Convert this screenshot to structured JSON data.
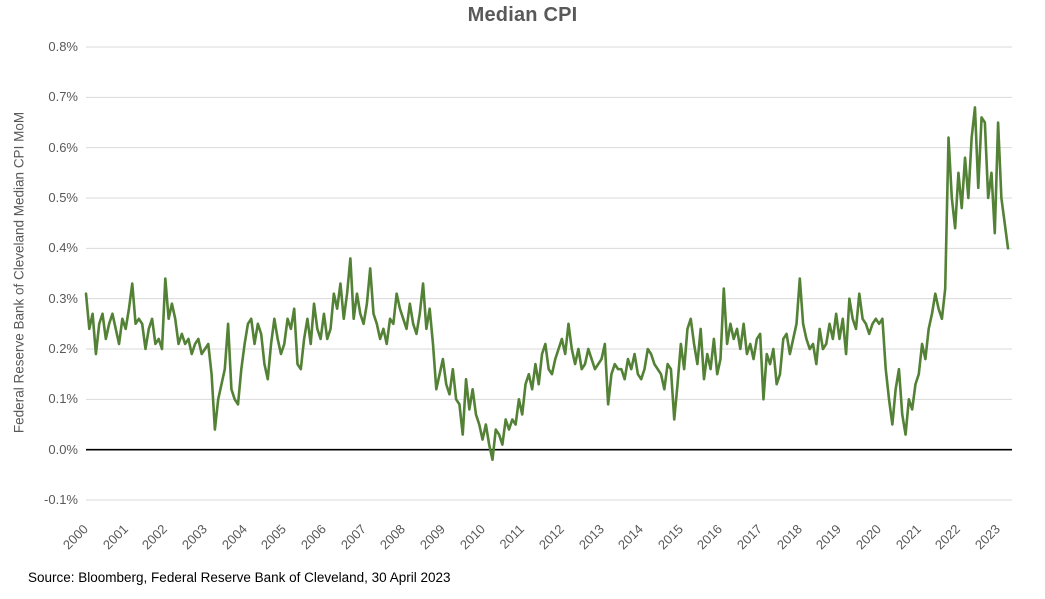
{
  "title": "Median CPI",
  "source": "Source: Bloomberg, Federal Reserve Bank of Cleveland, 30 April 2023",
  "chart_data": {
    "type": "line",
    "title": "Median CPI",
    "xlabel": "",
    "ylabel": "Federal Reserve Bank of Cleveland Median CPI MoM",
    "frequency": "monthly",
    "x_start": "2000-01",
    "x_end": "2023-04",
    "ylim": [
      -0.1,
      0.8
    ],
    "grid": "horizontal",
    "legend_position": "none",
    "y_ticks": [
      0.8,
      0.7,
      0.6,
      0.5,
      0.4,
      0.3,
      0.2,
      0.1,
      0.0,
      -0.1
    ],
    "y_tick_labels": [
      "0.8%",
      "0.7%",
      "0.6%",
      "0.5%",
      "0.4%",
      "0.3%",
      "0.2%",
      "0.1%",
      "0.0%",
      "-0.1%"
    ],
    "x_tick_labels": [
      "2000",
      "2001",
      "2002",
      "2003",
      "2004",
      "2005",
      "2006",
      "2007",
      "2008",
      "2009",
      "2010",
      "2011",
      "2012",
      "2013",
      "2014",
      "2015",
      "2016",
      "2017",
      "2018",
      "2019",
      "2020",
      "2021",
      "2022",
      "2023"
    ],
    "colors": {
      "line": "#538135",
      "grid": "#d9d9d9",
      "zero_line": "#000000",
      "text": "#595959"
    },
    "series": [
      {
        "name": "Median CPI MoM (%)",
        "values": [
          0.31,
          0.24,
          0.27,
          0.19,
          0.25,
          0.27,
          0.22,
          0.25,
          0.27,
          0.24,
          0.21,
          0.26,
          0.24,
          0.28,
          0.33,
          0.25,
          0.26,
          0.25,
          0.2,
          0.24,
          0.26,
          0.21,
          0.22,
          0.2,
          0.34,
          0.26,
          0.29,
          0.26,
          0.21,
          0.23,
          0.21,
          0.22,
          0.19,
          0.21,
          0.22,
          0.19,
          0.2,
          0.21,
          0.15,
          0.04,
          0.1,
          0.13,
          0.16,
          0.25,
          0.12,
          0.1,
          0.09,
          0.16,
          0.21,
          0.25,
          0.26,
          0.21,
          0.25,
          0.23,
          0.17,
          0.14,
          0.21,
          0.26,
          0.22,
          0.19,
          0.21,
          0.26,
          0.24,
          0.28,
          0.17,
          0.16,
          0.22,
          0.26,
          0.21,
          0.29,
          0.24,
          0.22,
          0.27,
          0.22,
          0.24,
          0.31,
          0.28,
          0.33,
          0.26,
          0.31,
          0.38,
          0.26,
          0.31,
          0.27,
          0.25,
          0.29,
          0.36,
          0.27,
          0.25,
          0.22,
          0.24,
          0.21,
          0.26,
          0.25,
          0.31,
          0.28,
          0.26,
          0.24,
          0.29,
          0.25,
          0.23,
          0.27,
          0.33,
          0.24,
          0.28,
          0.21,
          0.12,
          0.15,
          0.18,
          0.13,
          0.11,
          0.16,
          0.1,
          0.09,
          0.03,
          0.14,
          0.08,
          0.12,
          0.07,
          0.05,
          0.02,
          0.05,
          0.01,
          -0.02,
          0.04,
          0.03,
          0.01,
          0.06,
          0.04,
          0.06,
          0.05,
          0.1,
          0.07,
          0.13,
          0.15,
          0.12,
          0.17,
          0.13,
          0.19,
          0.21,
          0.16,
          0.15,
          0.18,
          0.2,
          0.22,
          0.19,
          0.25,
          0.2,
          0.17,
          0.2,
          0.16,
          0.17,
          0.2,
          0.18,
          0.16,
          0.17,
          0.18,
          0.21,
          0.09,
          0.15,
          0.17,
          0.16,
          0.16,
          0.14,
          0.18,
          0.16,
          0.19,
          0.15,
          0.14,
          0.16,
          0.2,
          0.19,
          0.17,
          0.16,
          0.15,
          0.12,
          0.17,
          0.16,
          0.06,
          0.13,
          0.21,
          0.16,
          0.24,
          0.26,
          0.21,
          0.17,
          0.24,
          0.14,
          0.19,
          0.16,
          0.22,
          0.15,
          0.18,
          0.32,
          0.21,
          0.25,
          0.22,
          0.24,
          0.2,
          0.25,
          0.19,
          0.21,
          0.18,
          0.22,
          0.23,
          0.1,
          0.19,
          0.17,
          0.2,
          0.13,
          0.15,
          0.22,
          0.23,
          0.19,
          0.22,
          0.25,
          0.34,
          0.25,
          0.22,
          0.2,
          0.21,
          0.17,
          0.24,
          0.2,
          0.21,
          0.25,
          0.22,
          0.27,
          0.22,
          0.26,
          0.19,
          0.3,
          0.26,
          0.24,
          0.31,
          0.26,
          0.25,
          0.23,
          0.25,
          0.26,
          0.25,
          0.26,
          0.16,
          0.1,
          0.05,
          0.12,
          0.16,
          0.07,
          0.03,
          0.1,
          0.08,
          0.13,
          0.15,
          0.21,
          0.18,
          0.24,
          0.27,
          0.31,
          0.28,
          0.26,
          0.32,
          0.62,
          0.5,
          0.44,
          0.55,
          0.48,
          0.58,
          0.5,
          0.62,
          0.68,
          0.52,
          0.66,
          0.65,
          0.5,
          0.55,
          0.43,
          0.65,
          0.5,
          0.45,
          0.4
        ]
      }
    ]
  }
}
